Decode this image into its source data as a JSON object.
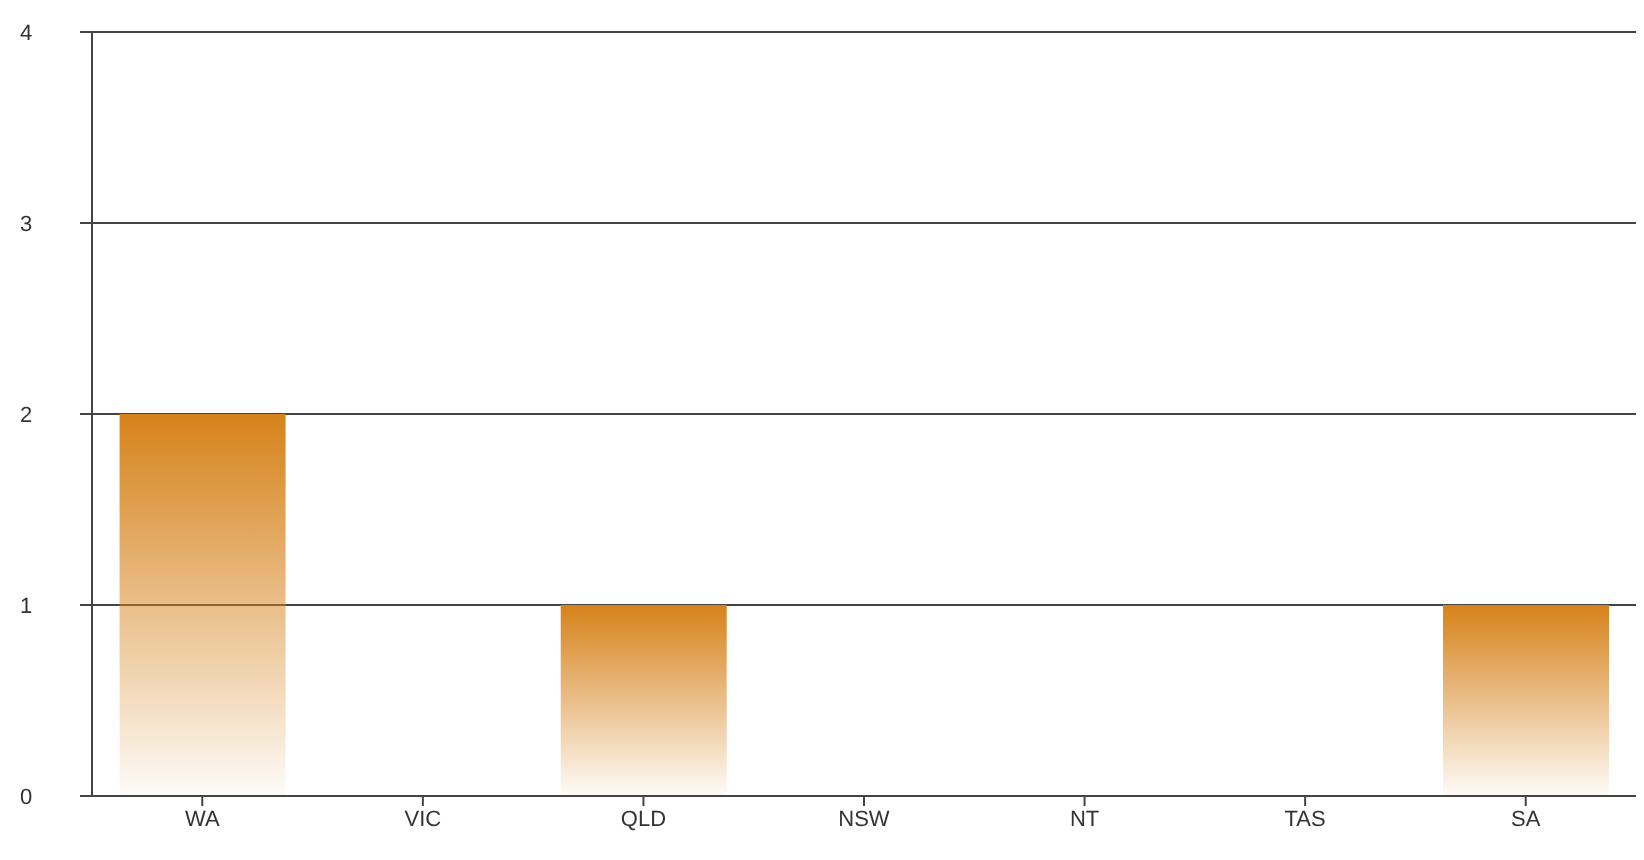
{
  "chart_data": {
    "type": "bar",
    "categories": [
      "WA",
      "VIC",
      "QLD",
      "NSW",
      "NT",
      "TAS",
      "SA"
    ],
    "values": [
      2,
      0,
      1,
      0,
      0,
      0,
      1
    ],
    "color": "#d6821a",
    "ylim": [
      0,
      4
    ],
    "yticks": [
      0,
      1,
      2,
      3,
      4
    ],
    "grid": "y",
    "legend": false
  }
}
